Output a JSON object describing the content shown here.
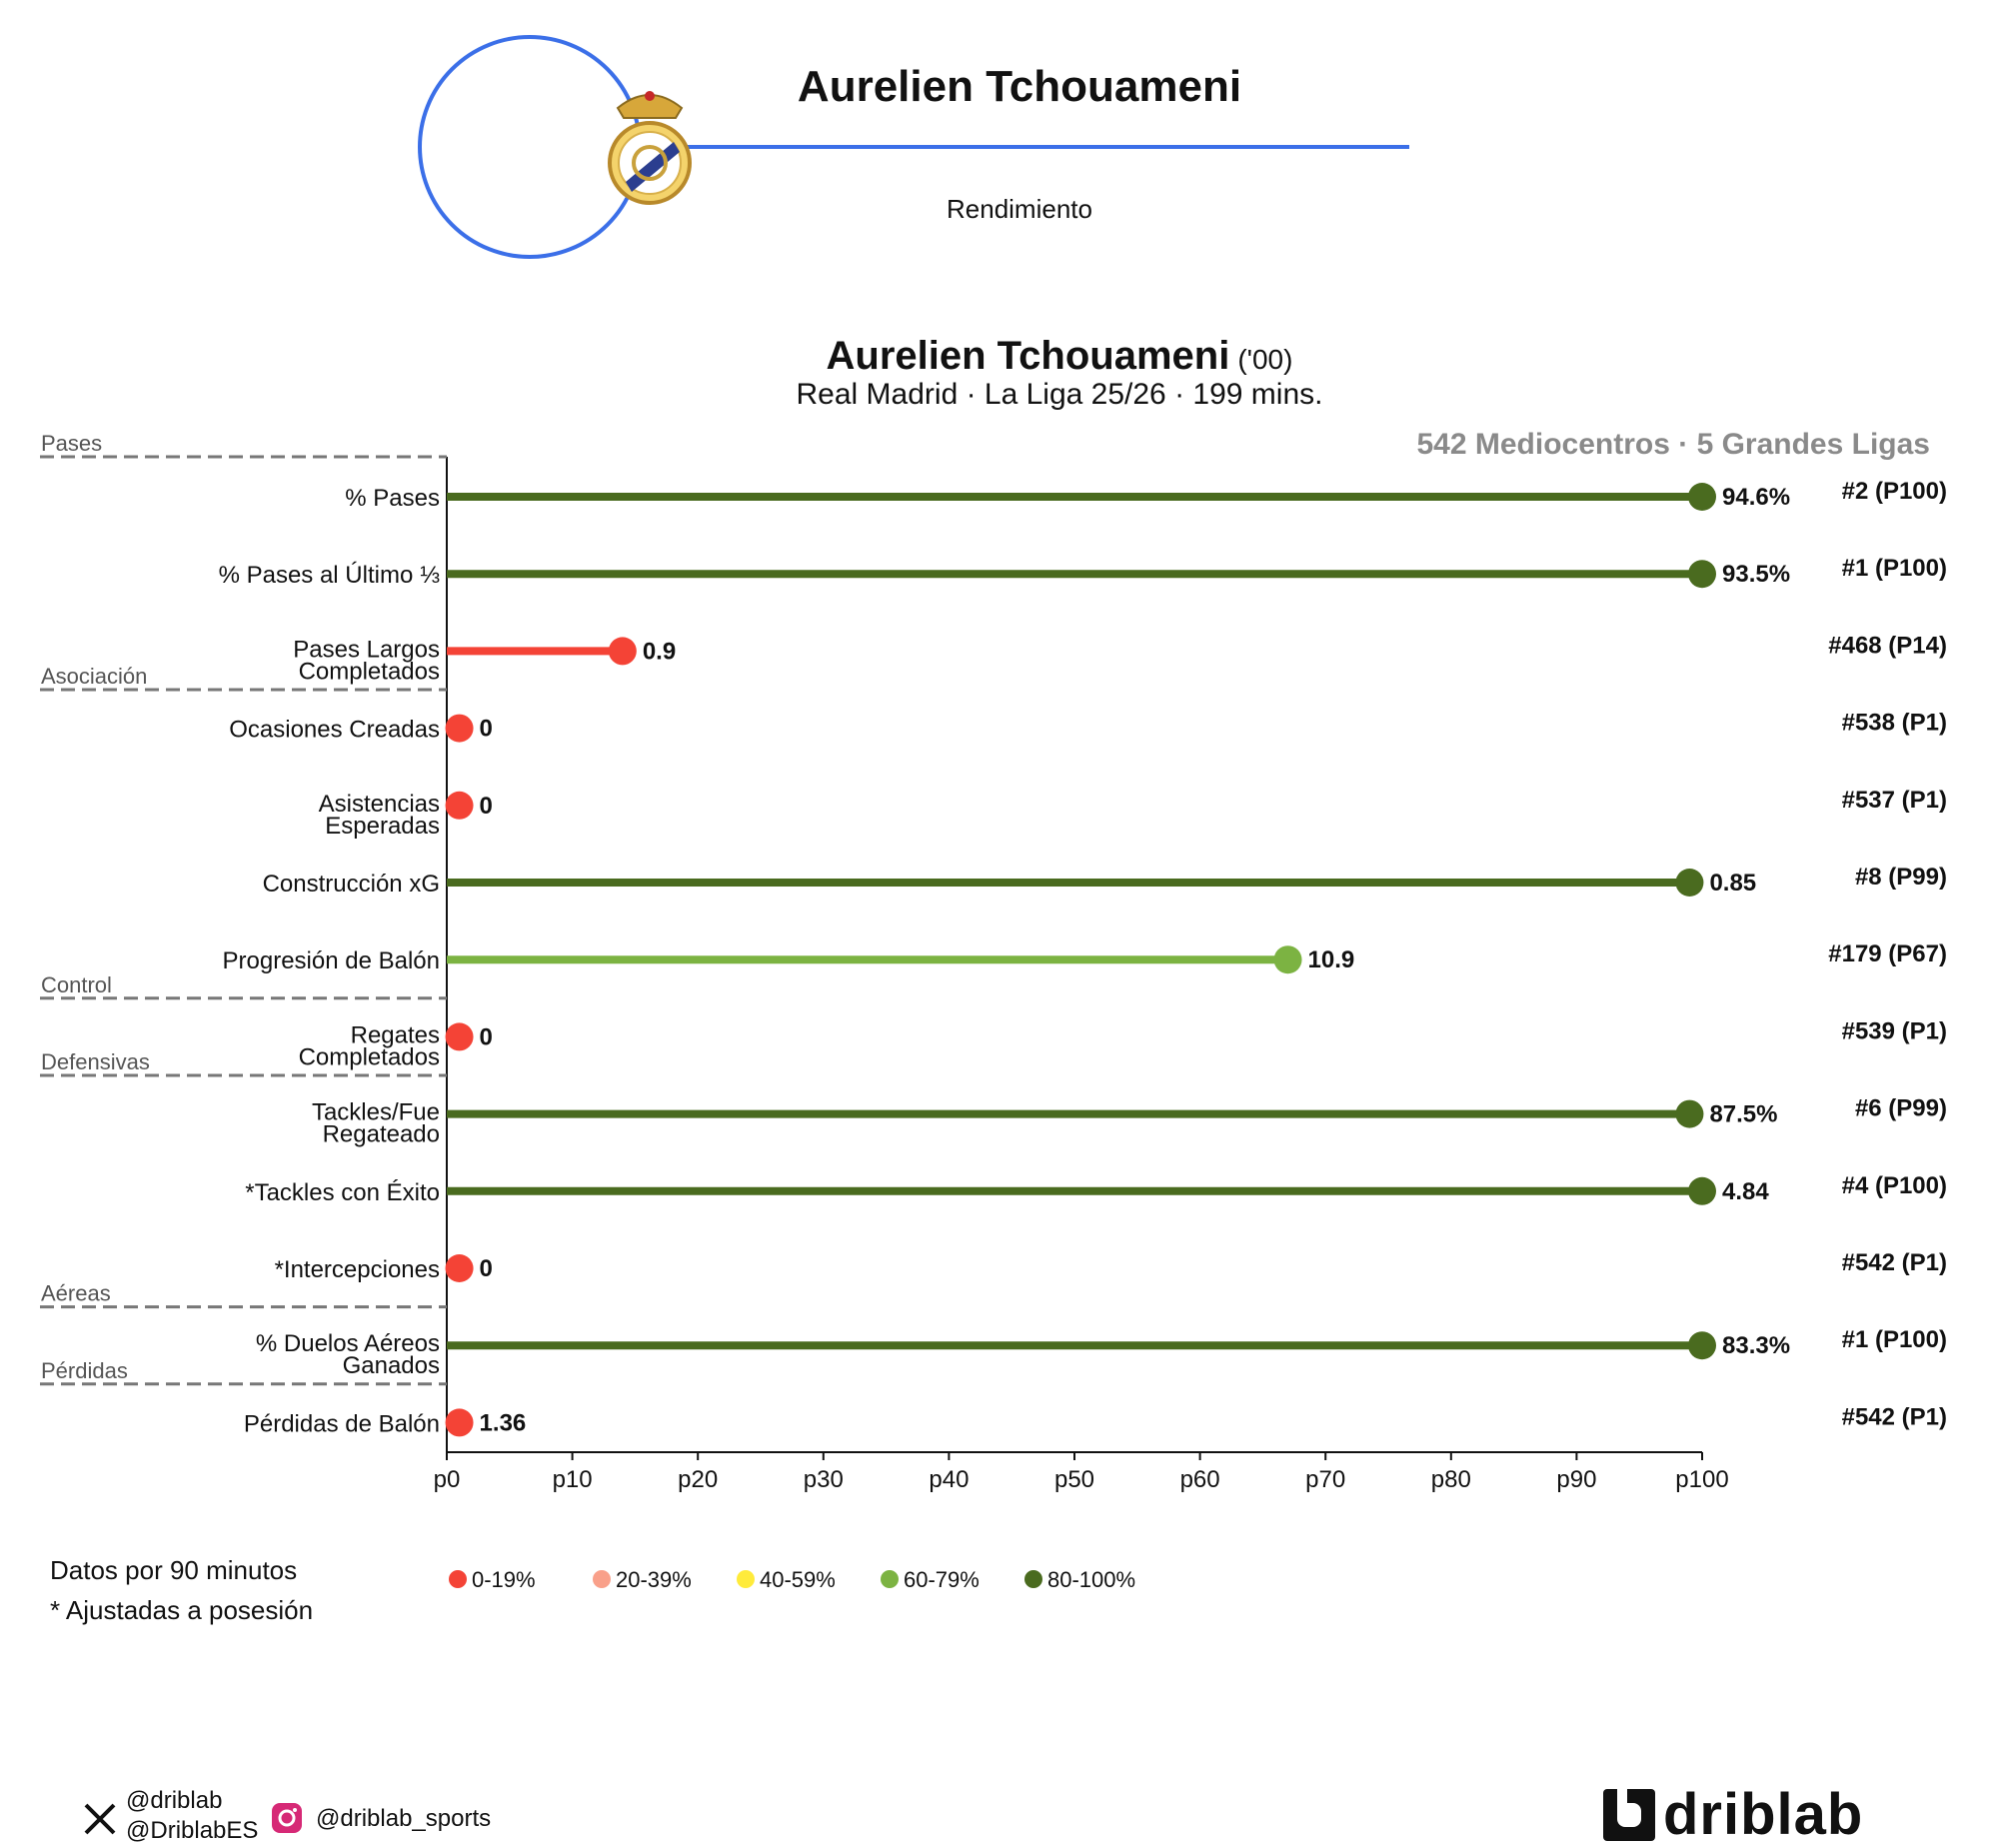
{
  "header": {
    "player_name": "Aurelien Tchouameni",
    "subtitle": "Rendimiento"
  },
  "profile": {
    "player_name": "Aurelien Tchouameni",
    "birth_year": "('00)",
    "team_line": "Real Madrid · La Liga 25/26 · 199 mins.",
    "population_label": "542 Mediocentros · 5 Grandes Ligas"
  },
  "colors": {
    "accent_blue": "#3b6fe8",
    "p0_19": "#f44336",
    "p20_39": "#f9a08a",
    "p40_59": "#ffeb3b",
    "p60_79": "#7cb342",
    "p80_100": "#4a6b1f"
  },
  "chart_data": {
    "type": "lollipop",
    "x_axis": {
      "min": 0,
      "max": 100,
      "ticks": [
        "p0",
        "p10",
        "p20",
        "p30",
        "p40",
        "p50",
        "p60",
        "p70",
        "p80",
        "p90",
        "p100"
      ]
    },
    "groups": [
      {
        "label": "Pases",
        "before_metric": 0
      },
      {
        "label": "Asociación",
        "before_metric": 3
      },
      {
        "label": "Control",
        "before_metric": 7
      },
      {
        "label": "Defensivas",
        "before_metric": 8
      },
      {
        "label": "Aéreas",
        "before_metric": 11
      },
      {
        "label": "Pérdidas",
        "before_metric": 12
      }
    ],
    "metrics": [
      {
        "label_lines": [
          "% Pases"
        ],
        "percentile": 100,
        "value": "94.6%",
        "rank": "#2 (P100)",
        "band": "p80_100"
      },
      {
        "label_lines": [
          "% Pases al Último ⅓"
        ],
        "percentile": 100,
        "value": "93.5%",
        "rank": "#1 (P100)",
        "band": "p80_100"
      },
      {
        "label_lines": [
          "Pases Largos",
          "Completados"
        ],
        "percentile": 14,
        "value": "0.9",
        "rank": "#468 (P14)",
        "band": "p0_19"
      },
      {
        "label_lines": [
          "Ocasiones Creadas"
        ],
        "percentile": 1,
        "value": "0",
        "rank": "#538 (P1)",
        "band": "p0_19"
      },
      {
        "label_lines": [
          "Asistencias",
          "Esperadas"
        ],
        "percentile": 1,
        "value": "0",
        "rank": "#537 (P1)",
        "band": "p0_19"
      },
      {
        "label_lines": [
          "Construcción xG"
        ],
        "percentile": 99,
        "value": "0.85",
        "rank": "#8 (P99)",
        "band": "p80_100"
      },
      {
        "label_lines": [
          "Progresión de Balón"
        ],
        "percentile": 67,
        "value": "10.9",
        "rank": "#179 (P67)",
        "band": "p60_79"
      },
      {
        "label_lines": [
          "Regates",
          "Completados"
        ],
        "percentile": 1,
        "value": "0",
        "rank": "#539 (P1)",
        "band": "p0_19"
      },
      {
        "label_lines": [
          "Tackles/Fue",
          "Regateado"
        ],
        "percentile": 99,
        "value": "87.5%",
        "rank": "#6 (P99)",
        "band": "p80_100"
      },
      {
        "label_lines": [
          "*Tackles con Éxito"
        ],
        "percentile": 100,
        "value": "4.84",
        "rank": "#4 (P100)",
        "band": "p80_100"
      },
      {
        "label_lines": [
          "*Intercepciones"
        ],
        "percentile": 1,
        "value": "0",
        "rank": "#542 (P1)",
        "band": "p0_19"
      },
      {
        "label_lines": [
          "% Duelos Aéreos",
          "Ganados"
        ],
        "percentile": 100,
        "value": "83.3%",
        "rank": "#1 (P100)",
        "band": "p80_100"
      },
      {
        "label_lines": [
          "Pérdidas de Balón"
        ],
        "percentile": 1,
        "value": "1.36",
        "rank": "#542 (P1)",
        "band": "p0_19"
      }
    ],
    "legend": [
      {
        "label": "0-19%",
        "band": "p0_19"
      },
      {
        "label": "20-39%",
        "band": "p20_39"
      },
      {
        "label": "40-59%",
        "band": "p40_59"
      },
      {
        "label": "60-79%",
        "band": "p60_79"
      },
      {
        "label": "80-100%",
        "band": "p80_100"
      }
    ]
  },
  "notes": {
    "per90": "Datos por 90 minutos",
    "adjusted": "* Ajustadas a posesión"
  },
  "social": {
    "x_handle_1": "@driblab",
    "x_handle_2": "@DriblabES",
    "instagram": "@driblab_sports"
  },
  "brand": "driblab"
}
